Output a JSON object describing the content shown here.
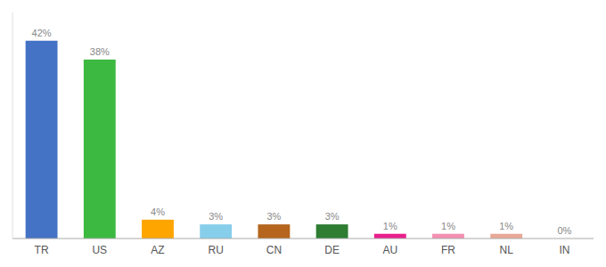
{
  "chart_data": {
    "type": "bar",
    "categories": [
      "TR",
      "US",
      "AZ",
      "RU",
      "CN",
      "DE",
      "AU",
      "FR",
      "NL",
      "IN"
    ],
    "values": [
      42,
      38,
      4,
      3,
      3,
      3,
      1,
      1,
      1,
      0
    ],
    "value_labels": [
      "42%",
      "38%",
      "4%",
      "3%",
      "3%",
      "3%",
      "1%",
      "1%",
      "1%",
      "0%"
    ],
    "colors": [
      "#4472C4",
      "#3CB940",
      "#FFA500",
      "#87CEEB",
      "#B5651D",
      "#2E7D32",
      "#E91E8C",
      "#F48FB1",
      "#E8A898",
      "#E8A898"
    ],
    "ylim": [
      0,
      48
    ],
    "data_labels": true,
    "tick_labels": "x",
    "grid": false
  }
}
